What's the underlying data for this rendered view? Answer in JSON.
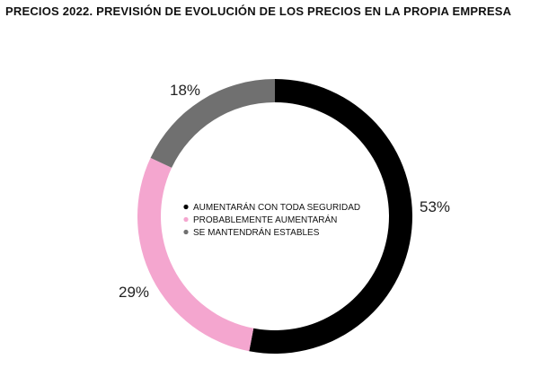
{
  "chart_data": {
    "type": "pie",
    "title": "PRECIOS 2022. PREVISIÓN DE EVOLUCIÓN DE LOS PRECIOS EN LA PROPIA EMPRESA",
    "donut": true,
    "slices": [
      {
        "label": "AUMENTARÁN CON TODA SEGURIDAD",
        "value": 53,
        "display": "53%",
        "color": "#000000"
      },
      {
        "label": "PROBABLEMENTE AUMENTARÁN",
        "value": 29,
        "display": "29%",
        "color": "#f4a6cf"
      },
      {
        "label": "SE MANTENDRÁN ESTABLES",
        "value": 18,
        "display": "18%",
        "color": "#707070"
      }
    ],
    "legend_position": "center"
  }
}
